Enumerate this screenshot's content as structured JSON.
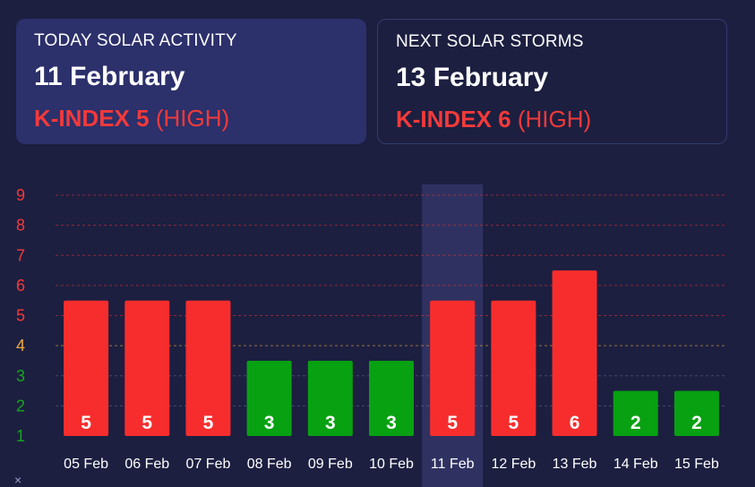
{
  "today": {
    "title": "TODAY SOLAR ACTIVITY",
    "date": "11 February",
    "k_label": "K-INDEX 5",
    "k_level": "(HIGH)"
  },
  "next": {
    "title": "NEXT SOLAR STORMS",
    "date": "13 February",
    "k_label": "K-INDEX 6",
    "k_level": "(HIGH)"
  },
  "close_label": "×",
  "colors": {
    "high": "#f72d2d",
    "low": "#08a112",
    "moderate": "#f0a93a",
    "label_high": "#f33a3a",
    "label_low": "#17a51e",
    "highlight": "#2f3261"
  },
  "chart_data": {
    "type": "bar",
    "title": "",
    "xlabel": "",
    "ylabel": "",
    "categories": [
      "05 Feb",
      "06 Feb",
      "07 Feb",
      "08 Feb",
      "09 Feb",
      "10 Feb",
      "11 Feb",
      "12 Feb",
      "13 Feb",
      "14 Feb",
      "15 Feb"
    ],
    "values": [
      5,
      5,
      5,
      3,
      3,
      3,
      5,
      5,
      6,
      2,
      2
    ],
    "ylim": [
      1,
      9
    ],
    "yticks": [
      "1",
      "2",
      "3",
      "4",
      "5",
      "6",
      "7",
      "8",
      "9"
    ],
    "highlighted_category": "11 Feb",
    "grid": true
  }
}
